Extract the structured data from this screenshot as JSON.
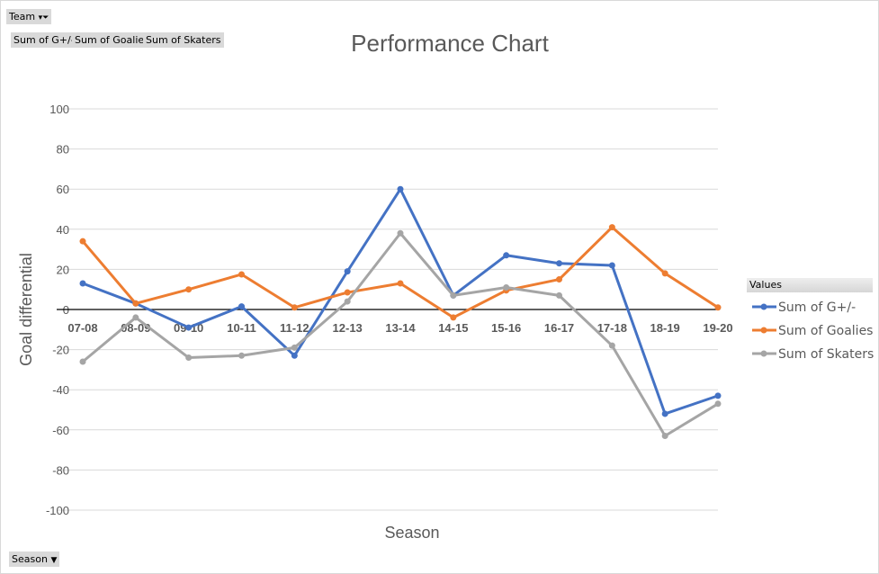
{
  "pivot": {
    "filter_button": "Team",
    "value_buttons": [
      "Sum of G+/-",
      "Sum of Goalies",
      "Sum of Skaters"
    ],
    "axis_button": "Season"
  },
  "legend": {
    "title": "Values"
  },
  "chart_data": {
    "type": "line",
    "title": "Performance Chart",
    "xlabel": "Season",
    "ylabel": "Goal differential",
    "ylim": [
      -100,
      100
    ],
    "yticks": [
      100,
      80,
      60,
      40,
      20,
      0,
      -20,
      -40,
      -60,
      -80,
      -100
    ],
    "grid": true,
    "legend_position": "right",
    "categories": [
      "07-08",
      "08-09",
      "09-10",
      "10-11",
      "11-12",
      "12-13",
      "13-14",
      "14-15",
      "15-16",
      "16-17",
      "17-18",
      "18-19",
      "19-20"
    ],
    "series": [
      {
        "name": "Sum of G+/-",
        "color": "#4472c4",
        "values": [
          13,
          3,
          -9,
          1.5,
          -23,
          19,
          60,
          7,
          27,
          23,
          22,
          -52,
          -43
        ]
      },
      {
        "name": "Sum of Goalies",
        "color": "#ed7d31",
        "values": [
          34,
          3,
          10,
          17.5,
          1,
          8.5,
          13,
          -4,
          9.5,
          15,
          41,
          18,
          1
        ]
      },
      {
        "name": "Sum of Skaters",
        "color": "#a5a5a5",
        "values": [
          -26,
          -4,
          -24,
          -23,
          -19,
          4,
          38,
          7,
          11,
          7,
          -18,
          -63,
          -47
        ]
      }
    ]
  }
}
